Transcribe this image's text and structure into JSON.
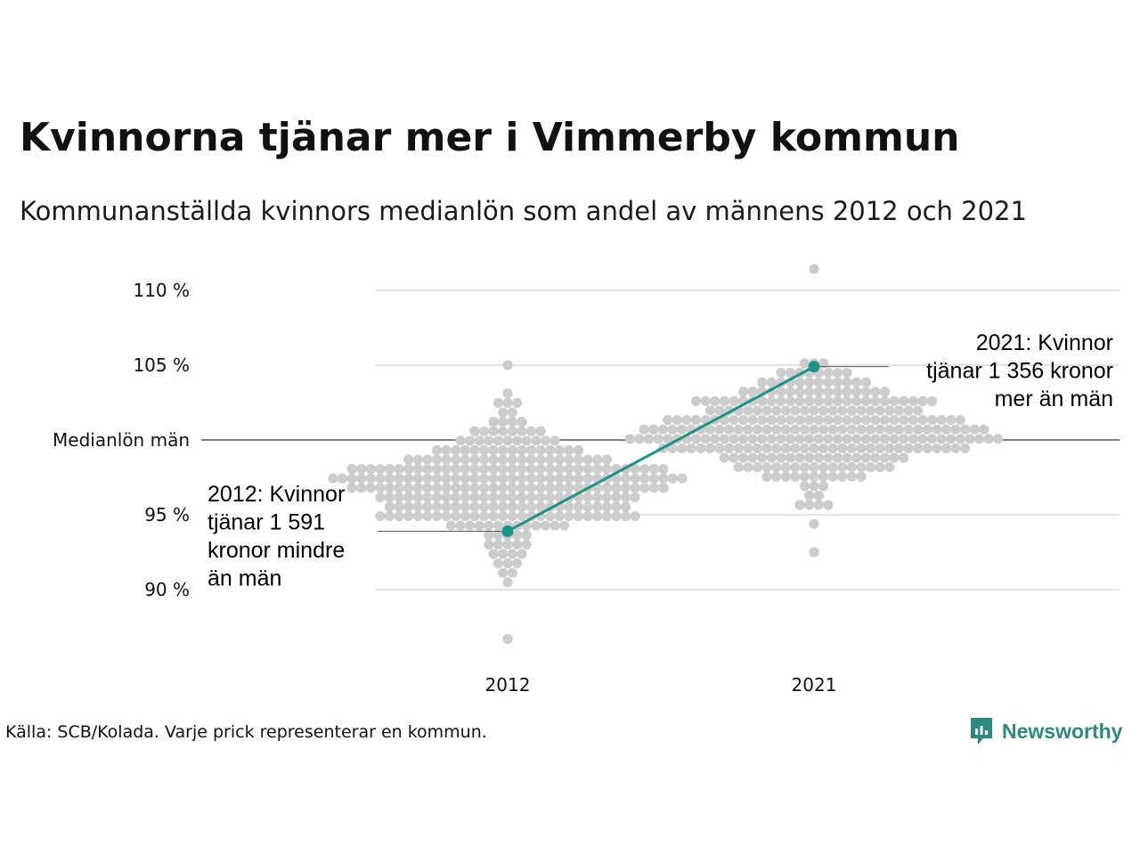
{
  "title": "Kvinnorna tjänar mer i Vimmerby kommun",
  "subtitle": "Kommunanställda kvinnors medianlön som andel av männens 2012 och 2021",
  "source": "Källa: SCB/Kolada. Varje prick representerar en kommun.",
  "brand": {
    "name": "Newsworthy",
    "icon": "newsworthy-logo-icon",
    "color": "#2a8a80"
  },
  "colors": {
    "highlight": "#1a9486",
    "dots": "#cccccc",
    "grid": "#e3e3e3",
    "reference": "#333333"
  },
  "chart_data": {
    "type": "scatter",
    "title": "Kvinnorna tjänar mer i Vimmerby kommun",
    "subtitle": "Kommunanställda kvinnors medianlön som andel av männens 2012 och 2021",
    "categories": [
      "2012",
      "2021"
    ],
    "y_unit": "%",
    "ylim": [
      86.5,
      111.8
    ],
    "y_ticks": [
      {
        "value": 90,
        "label": "90 %"
      },
      {
        "value": 95,
        "label": "95 %"
      },
      {
        "value": 100,
        "label": "Medianlön män"
      },
      {
        "value": 105,
        "label": "105 %"
      },
      {
        "value": 110,
        "label": "110 %"
      }
    ],
    "reference_line": {
      "value": 100,
      "label": "Medianlön män"
    },
    "grid": true,
    "highlight": {
      "name": "Vimmerby",
      "values": [
        {
          "category": "2012",
          "value": 93.9
        },
        {
          "category": "2021",
          "value": 104.9
        }
      ]
    },
    "annotations": [
      {
        "category": "2012",
        "lines": [
          "2012: Kvinnor",
          "tjänar 1 591",
          "kronor mindre",
          "än män"
        ]
      },
      {
        "category": "2021",
        "lines": [
          "2021: Kvinnor",
          "tjänar 1 356 kronor",
          "mer än män"
        ]
      }
    ],
    "distributions": [
      {
        "category": "2012",
        "count": 290,
        "center": 96.8,
        "spread": 2.2,
        "min": 86.6,
        "max": 105.2
      },
      {
        "category": "2021",
        "count": 290,
        "center": 100.7,
        "spread": 2.0,
        "min": 92.5,
        "max": 111.3
      }
    ]
  }
}
